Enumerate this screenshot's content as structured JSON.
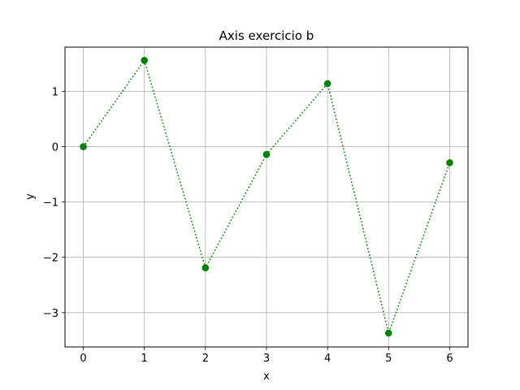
{
  "chart_data": {
    "type": "line",
    "title": "Axis exercicio b",
    "xlabel": "x",
    "ylabel": "y",
    "xlim": [
      -0.3,
      6.3
    ],
    "ylim": [
      -3.62,
      1.8
    ],
    "xticks": [
      0,
      1,
      2,
      3,
      4,
      5,
      6
    ],
    "xtick_labels": [
      "0",
      "1",
      "2",
      "3",
      "4",
      "5",
      "6"
    ],
    "yticks": [
      -3,
      -2,
      -1,
      0,
      1
    ],
    "ytick_labels": [
      "−3",
      "−2",
      "−1",
      "0",
      "1"
    ],
    "grid": true,
    "series": [
      {
        "x": [
          0,
          1,
          2,
          3,
          4,
          5,
          6
        ],
        "values": [
          0.0,
          1.56,
          -2.19,
          -0.14,
          1.14,
          -3.37,
          -0.29
        ],
        "color": "#008000",
        "linestyle": "dotted",
        "marker": "circle"
      }
    ]
  }
}
